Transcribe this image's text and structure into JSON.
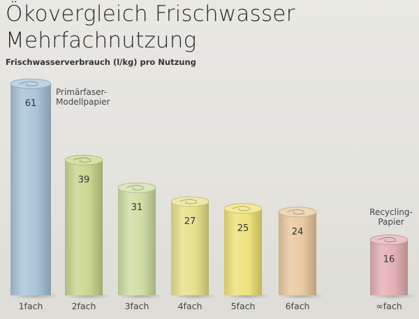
{
  "header": {
    "title_line1": "Ökovergleich Frischwasser",
    "title_line2": "Mehrfachnutzung",
    "subtitle": "Frischwasserverbrauch (l/kg) pro Nutzung"
  },
  "chart_data": {
    "type": "bar",
    "title": "Ökovergleich Frischwasser Mehrfachnutzung",
    "ylabel": "Frischwasserverbrauch (l/kg) pro Nutzung",
    "xlabel": "",
    "categories": [
      "1fach",
      "2fach",
      "3fach",
      "4fach",
      "5fach",
      "6fach",
      "∞fach"
    ],
    "values": [
      61,
      39,
      31,
      27,
      25,
      24,
      16
    ],
    "ylim": [
      0,
      61
    ],
    "grid": false,
    "colors": [
      "#a9c4d8",
      "#c9d68f",
      "#cfdda4",
      "#e6e08c",
      "#ede27a",
      "#e8c9a0",
      "#e3b0b4"
    ],
    "annotations": [
      {
        "index": 0,
        "lines": [
          "Primärfaser-",
          "Modellpapier"
        ]
      },
      {
        "index": 6,
        "lines": [
          "Recycling-",
          "Papier"
        ]
      }
    ]
  }
}
